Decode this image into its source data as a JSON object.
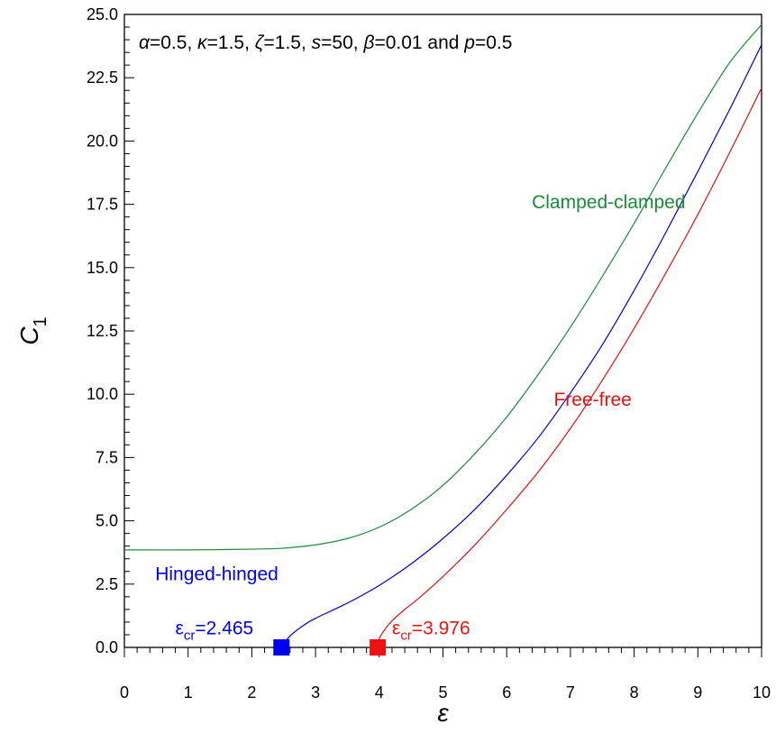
{
  "chart_data": {
    "type": "line",
    "title": "",
    "parameters_text_parts": [
      {
        "sym": "α",
        "val": "=0.5, "
      },
      {
        "sym": "κ",
        "val": "=1.5, "
      },
      {
        "sym": "ζ",
        "val": "=1.5, "
      },
      {
        "sym": "s",
        "val": "=50, "
      },
      {
        "sym": "β",
        "val": "=0.01 and "
      },
      {
        "sym": "p",
        "val": "=0.5"
      }
    ],
    "xlabel": "ε",
    "ylabel": "C",
    "ylabel_sub": "1",
    "xlim": [
      0,
      10
    ],
    "ylim": [
      0,
      25
    ],
    "x_ticks": [
      0,
      1,
      2,
      3,
      4,
      5,
      6,
      7,
      8,
      9,
      10
    ],
    "y_ticks": [
      0.0,
      2.5,
      5.0,
      7.5,
      10.0,
      12.5,
      15.0,
      17.5,
      20.0,
      22.5,
      25.0
    ],
    "x_tick_labels": [
      "0",
      "1",
      "2",
      "3",
      "4",
      "5",
      "6",
      "7",
      "8",
      "9",
      "10"
    ],
    "y_tick_labels": [
      "0.0",
      "2.5",
      "5.0",
      "7.5",
      "10.0",
      "12.5",
      "15.0",
      "17.5",
      "20.0",
      "22.5",
      "25.0"
    ],
    "grid": false,
    "series": [
      {
        "name": "Clamped-clamped",
        "color": "#1a8a3a",
        "x": [
          0,
          1,
          2,
          2.5,
          3,
          3.5,
          4,
          4.5,
          5,
          5.5,
          6,
          6.5,
          7,
          7.5,
          8,
          8.5,
          9,
          9.5,
          10
        ],
        "y": [
          3.85,
          3.85,
          3.88,
          3.92,
          4.05,
          4.3,
          4.75,
          5.45,
          6.4,
          7.65,
          9.1,
          10.8,
          12.65,
          14.65,
          16.75,
          18.95,
          21.1,
          23.1,
          24.6
        ]
      },
      {
        "name": "Hinged-hinged",
        "color": "#0000cc",
        "x": [
          2.465,
          2.6,
          2.8,
          3,
          3.5,
          4,
          4.5,
          5,
          5.5,
          6,
          6.5,
          7,
          7.5,
          8,
          8.5,
          9,
          9.5,
          10
        ],
        "y": [
          0,
          0.45,
          0.85,
          1.15,
          1.75,
          2.45,
          3.3,
          4.3,
          5.45,
          6.8,
          8.3,
          10.05,
          11.95,
          14.1,
          16.4,
          18.8,
          21.25,
          23.8
        ]
      },
      {
        "name": "Free-free",
        "color": "#dd1111",
        "x": [
          3.976,
          4.0,
          4.1,
          4.2,
          4.4,
          4.6,
          5,
          5.5,
          6,
          6.5,
          7,
          7.5,
          8,
          8.5,
          9,
          9.5,
          10
        ],
        "y": [
          0,
          0.35,
          0.75,
          1.05,
          1.5,
          1.9,
          2.8,
          4.05,
          5.45,
          6.95,
          8.65,
          10.55,
          12.6,
          14.8,
          17.1,
          19.55,
          22.1
        ]
      }
    ],
    "annotations": [
      {
        "text": "Clamped-clamped",
        "x": 7.6,
        "y": 17.35,
        "color": "#1a8a3a"
      },
      {
        "text": "Hinged-hinged",
        "x": 1.45,
        "y": 2.65,
        "color": "#0000ee"
      },
      {
        "text": "Free-free",
        "x": 7.35,
        "y": 9.55,
        "color": "#dd1111"
      }
    ],
    "critical_points": [
      {
        "label_main": "ε",
        "label_sub": "cr",
        "label_value": "=2.465",
        "x": 2.465,
        "y": 0,
        "color": "#0000ee",
        "label_x": 0.8,
        "label_y": 0.45
      },
      {
        "label_main": "ε",
        "label_sub": "cr",
        "label_value": "=3.976",
        "x": 3.976,
        "y": 0,
        "color": "#ee1111",
        "label_x": 4.2,
        "label_y": 0.45
      }
    ]
  }
}
